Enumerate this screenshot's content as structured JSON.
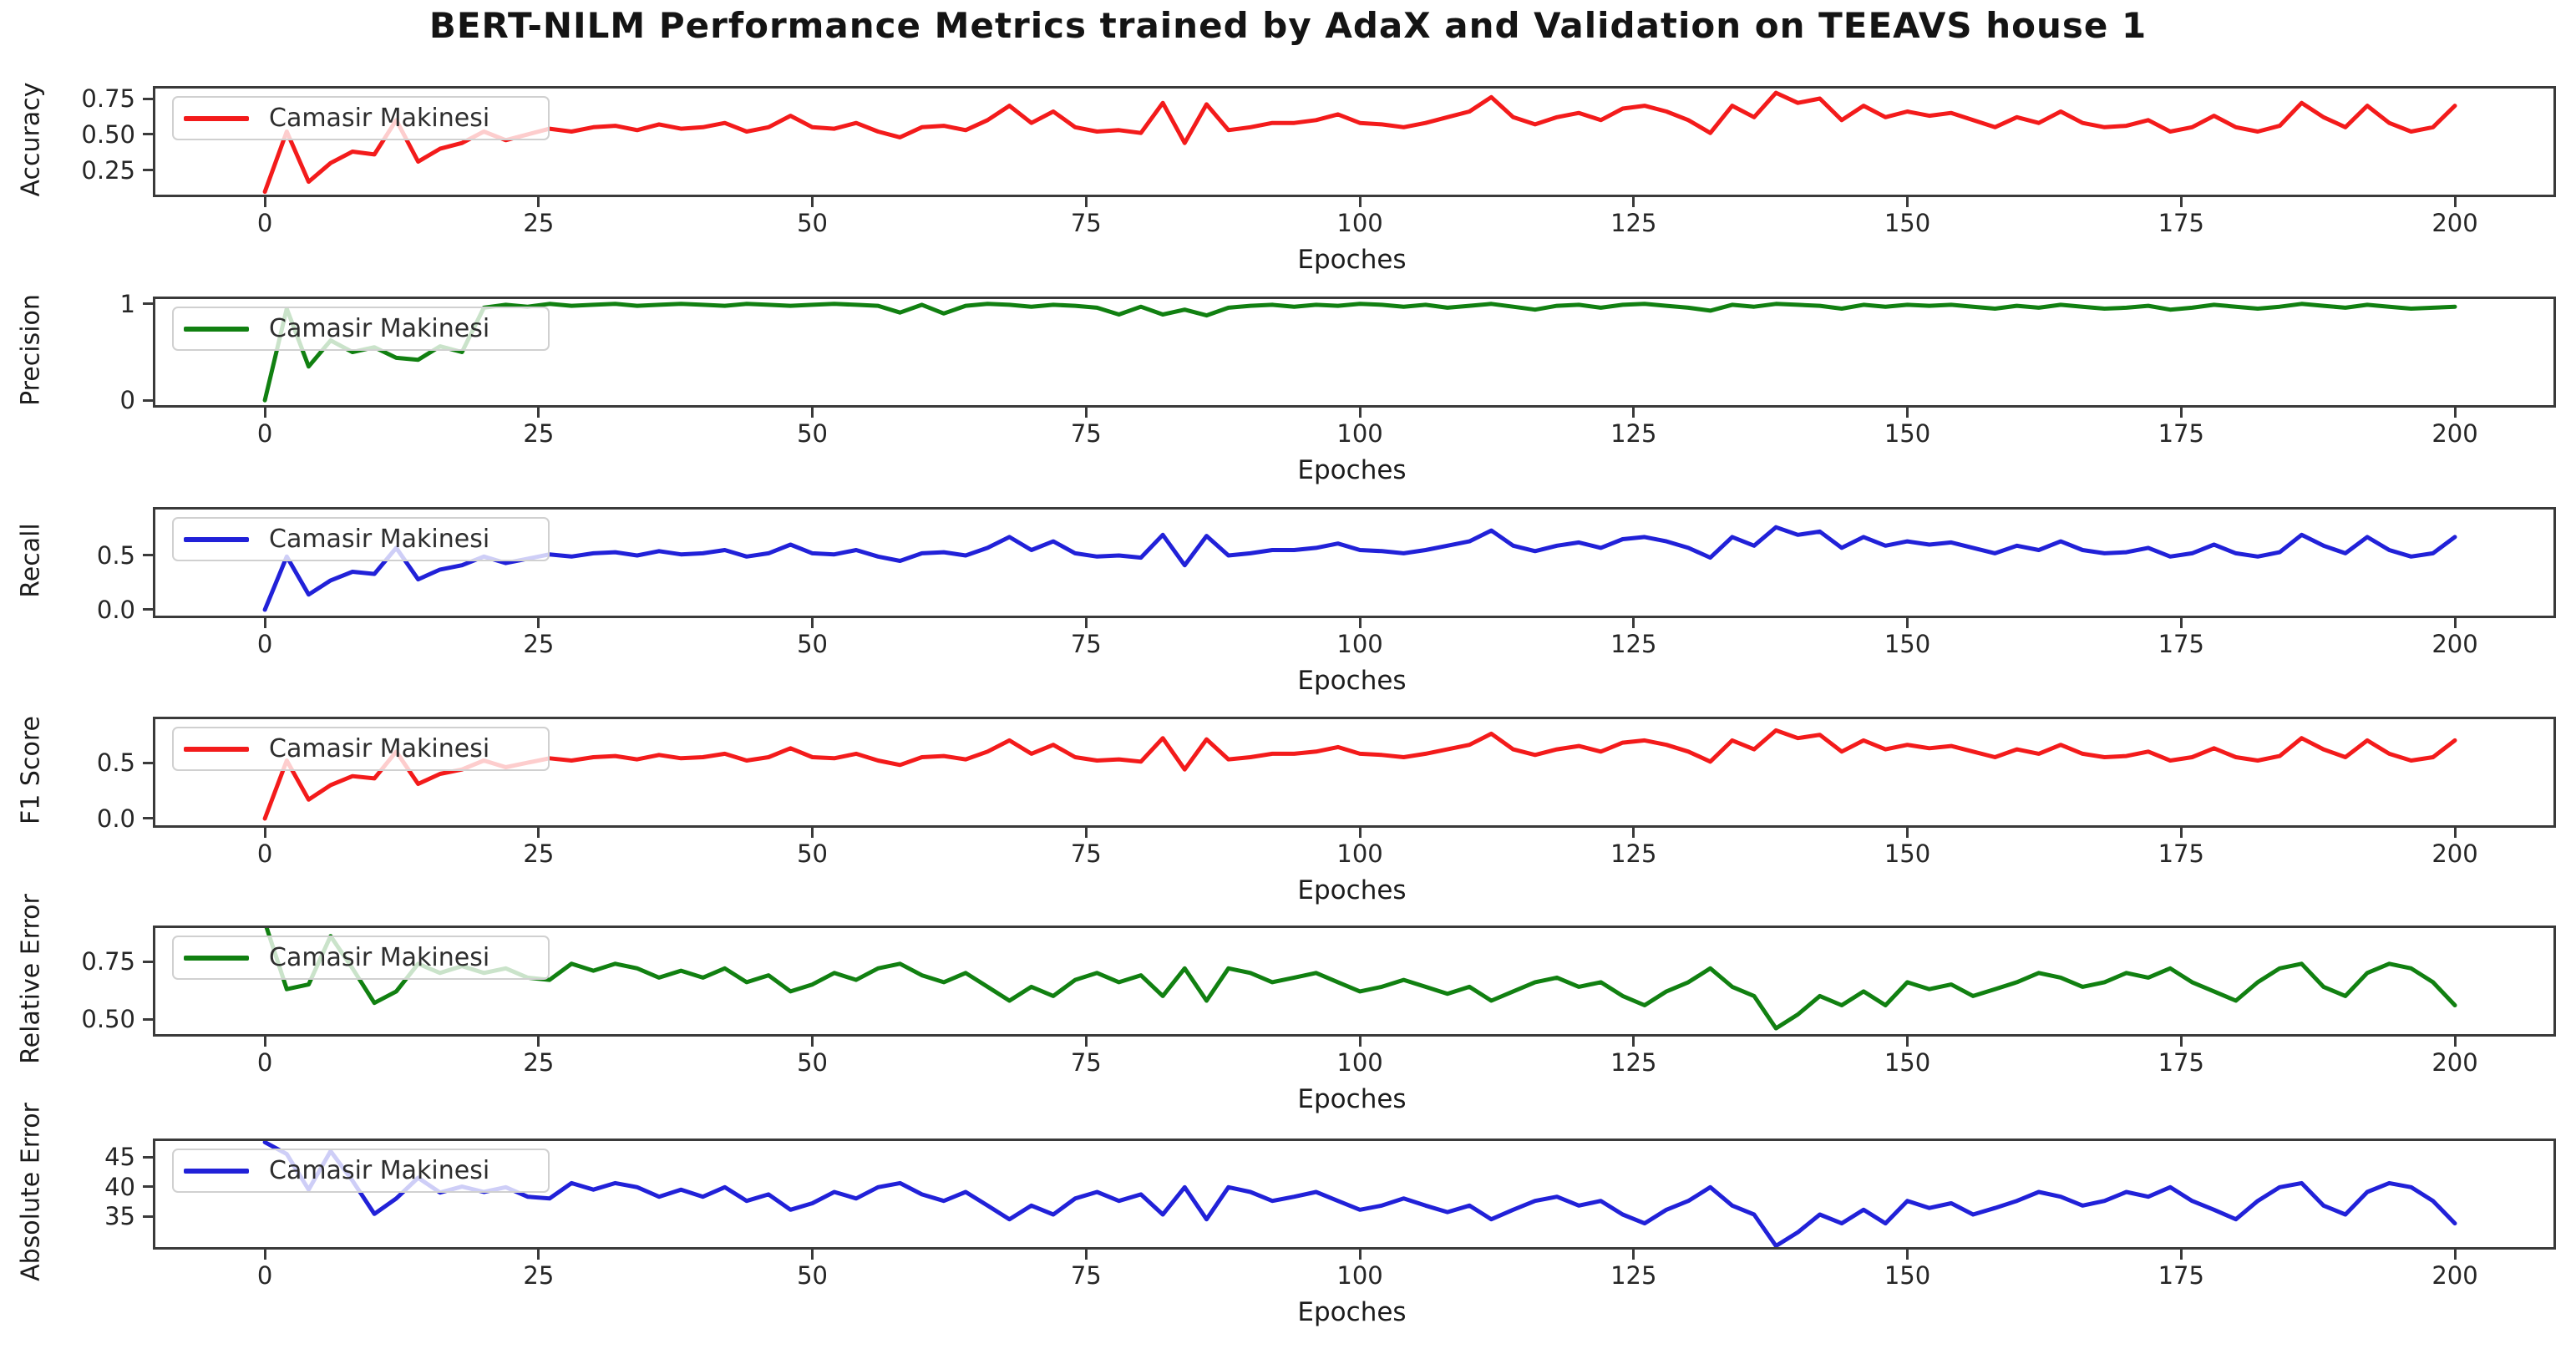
{
  "figure": {
    "title": "BERT-NILM Performance Metrics trained by AdaX and Validation on TEEAVS house 1"
  },
  "chart_data": {
    "type": "line",
    "title": "BERT-NILM Performance Metrics trained by AdaX and Validation on TEEAVS house 1",
    "xlabel": "Epoches",
    "grid": false,
    "legend_position": "upper left",
    "xlim": [
      -10,
      209
    ],
    "xticks": [
      0,
      25,
      50,
      75,
      100,
      125,
      150,
      175,
      200
    ],
    "xtick_labels": [
      "0",
      "25",
      "50",
      "75",
      "100",
      "125",
      "150",
      "175",
      "200"
    ],
    "x": [
      0,
      2,
      4,
      6,
      8,
      10,
      12,
      14,
      16,
      18,
      20,
      22,
      24,
      26,
      28,
      30,
      32,
      34,
      36,
      38,
      40,
      42,
      44,
      46,
      48,
      50,
      52,
      54,
      56,
      58,
      60,
      62,
      64,
      66,
      68,
      70,
      72,
      74,
      76,
      78,
      80,
      82,
      84,
      86,
      88,
      90,
      92,
      94,
      96,
      98,
      100,
      102,
      104,
      106,
      108,
      110,
      112,
      114,
      116,
      118,
      120,
      122,
      124,
      126,
      128,
      130,
      132,
      134,
      136,
      138,
      140,
      142,
      144,
      146,
      148,
      150,
      152,
      154,
      156,
      158,
      160,
      162,
      164,
      166,
      168,
      170,
      172,
      174,
      176,
      178,
      180,
      182,
      184,
      186,
      188,
      190,
      192,
      194,
      196,
      198,
      200
    ],
    "panels": [
      {
        "ylabel": "Accuracy",
        "legend": "Camasir Makinesi",
        "color": "#f31b1b",
        "ylim": [
          0.08,
          0.82
        ],
        "ytick_values": [
          0.25,
          0.5,
          0.75
        ],
        "ytick_labels": [
          "0.25",
          "0.50",
          "0.75"
        ],
        "values": [
          0.1,
          0.52,
          0.17,
          0.3,
          0.38,
          0.36,
          0.6,
          0.31,
          0.4,
          0.44,
          0.52,
          0.46,
          0.5,
          0.54,
          0.52,
          0.55,
          0.56,
          0.53,
          0.57,
          0.54,
          0.55,
          0.58,
          0.52,
          0.55,
          0.63,
          0.55,
          0.54,
          0.58,
          0.52,
          0.48,
          0.55,
          0.56,
          0.53,
          0.6,
          0.7,
          0.58,
          0.66,
          0.55,
          0.52,
          0.53,
          0.51,
          0.72,
          0.44,
          0.71,
          0.53,
          0.55,
          0.58,
          0.58,
          0.6,
          0.64,
          0.58,
          0.57,
          0.55,
          0.58,
          0.62,
          0.66,
          0.76,
          0.62,
          0.57,
          0.62,
          0.65,
          0.6,
          0.68,
          0.7,
          0.66,
          0.6,
          0.51,
          0.7,
          0.62,
          0.79,
          0.72,
          0.75,
          0.6,
          0.7,
          0.62,
          0.66,
          0.63,
          0.65,
          0.6,
          0.55,
          0.62,
          0.58,
          0.66,
          0.58,
          0.55,
          0.56,
          0.6,
          0.52,
          0.55,
          0.63,
          0.55,
          0.52,
          0.56,
          0.72,
          0.62,
          0.55,
          0.7,
          0.58,
          0.52,
          0.55,
          0.7
        ]
      },
      {
        "ylabel": "Precision",
        "legend": "Camasir Makinesi",
        "color": "#118011",
        "ylim": [
          -0.05,
          1.05
        ],
        "ytick_values": [
          0,
          1
        ],
        "ytick_labels": [
          "0",
          "1"
        ],
        "values": [
          0.0,
          0.95,
          0.35,
          0.62,
          0.5,
          0.55,
          0.44,
          0.42,
          0.56,
          0.5,
          0.96,
          0.99,
          0.97,
          1.0,
          0.98,
          0.99,
          1.0,
          0.98,
          0.99,
          1.0,
          0.99,
          0.98,
          1.0,
          0.99,
          0.98,
          0.99,
          1.0,
          0.99,
          0.98,
          0.91,
          0.99,
          0.9,
          0.98,
          1.0,
          0.99,
          0.97,
          0.99,
          0.98,
          0.96,
          0.89,
          0.97,
          0.89,
          0.94,
          0.88,
          0.96,
          0.98,
          0.99,
          0.97,
          0.99,
          0.98,
          1.0,
          0.99,
          0.97,
          0.99,
          0.96,
          0.98,
          1.0,
          0.97,
          0.94,
          0.98,
          0.99,
          0.96,
          0.99,
          1.0,
          0.98,
          0.96,
          0.93,
          0.99,
          0.97,
          1.0,
          0.99,
          0.98,
          0.95,
          0.99,
          0.97,
          0.99,
          0.98,
          0.99,
          0.97,
          0.95,
          0.98,
          0.96,
          0.99,
          0.97,
          0.95,
          0.96,
          0.98,
          0.94,
          0.96,
          0.99,
          0.97,
          0.95,
          0.97,
          1.0,
          0.98,
          0.96,
          0.99,
          0.97,
          0.95,
          0.96,
          0.97
        ]
      },
      {
        "ylabel": "Recall",
        "legend": "Camasir Makinesi",
        "color": "#2121d8",
        "ylim": [
          -0.054,
          0.923
        ],
        "ytick_values": [
          0.0,
          0.5
        ],
        "ytick_labels": [
          "0.0",
          "0.5"
        ],
        "values": [
          0.0,
          0.49,
          0.14,
          0.27,
          0.35,
          0.33,
          0.57,
          0.28,
          0.37,
          0.41,
          0.49,
          0.43,
          0.47,
          0.51,
          0.49,
          0.52,
          0.53,
          0.5,
          0.54,
          0.51,
          0.52,
          0.55,
          0.49,
          0.52,
          0.6,
          0.52,
          0.51,
          0.55,
          0.49,
          0.45,
          0.52,
          0.53,
          0.5,
          0.57,
          0.67,
          0.55,
          0.63,
          0.52,
          0.49,
          0.5,
          0.48,
          0.69,
          0.41,
          0.68,
          0.5,
          0.52,
          0.55,
          0.55,
          0.57,
          0.61,
          0.55,
          0.54,
          0.52,
          0.55,
          0.59,
          0.63,
          0.73,
          0.59,
          0.54,
          0.59,
          0.62,
          0.57,
          0.65,
          0.67,
          0.63,
          0.57,
          0.48,
          0.67,
          0.59,
          0.76,
          0.69,
          0.72,
          0.57,
          0.67,
          0.59,
          0.63,
          0.6,
          0.62,
          0.57,
          0.52,
          0.59,
          0.55,
          0.63,
          0.55,
          0.52,
          0.53,
          0.57,
          0.49,
          0.52,
          0.6,
          0.52,
          0.49,
          0.53,
          0.69,
          0.59,
          0.52,
          0.67,
          0.55,
          0.49,
          0.52,
          0.67
        ]
      },
      {
        "ylabel": "F1 Score",
        "legend": "Camasir Makinesi",
        "color": "#f31b1b",
        "ylim": [
          -0.06,
          0.89
        ],
        "ytick_values": [
          0.0,
          0.5
        ],
        "ytick_labels": [
          "0.0",
          "0.5"
        ],
        "values": [
          0.0,
          0.52,
          0.17,
          0.3,
          0.38,
          0.36,
          0.6,
          0.31,
          0.4,
          0.44,
          0.52,
          0.46,
          0.5,
          0.54,
          0.52,
          0.55,
          0.56,
          0.53,
          0.57,
          0.54,
          0.55,
          0.58,
          0.52,
          0.55,
          0.63,
          0.55,
          0.54,
          0.58,
          0.52,
          0.48,
          0.55,
          0.56,
          0.53,
          0.6,
          0.7,
          0.58,
          0.66,
          0.55,
          0.52,
          0.53,
          0.51,
          0.72,
          0.44,
          0.71,
          0.53,
          0.55,
          0.58,
          0.58,
          0.6,
          0.64,
          0.58,
          0.57,
          0.55,
          0.58,
          0.62,
          0.66,
          0.76,
          0.62,
          0.57,
          0.62,
          0.65,
          0.6,
          0.68,
          0.7,
          0.66,
          0.6,
          0.51,
          0.7,
          0.62,
          0.79,
          0.72,
          0.75,
          0.6,
          0.7,
          0.62,
          0.66,
          0.63,
          0.65,
          0.6,
          0.55,
          0.62,
          0.58,
          0.66,
          0.58,
          0.55,
          0.56,
          0.6,
          0.52,
          0.55,
          0.63,
          0.55,
          0.52,
          0.56,
          0.72,
          0.62,
          0.55,
          0.7,
          0.58,
          0.52,
          0.55,
          0.7
        ]
      },
      {
        "ylabel": "Relative Error",
        "legend": "Camasir Makinesi",
        "color": "#118011",
        "ylim": [
          0.435,
          0.895
        ],
        "ytick_values": [
          0.5,
          0.75
        ],
        "ytick_labels": [
          "0.50",
          "0.75"
        ],
        "values": [
          0.92,
          0.63,
          0.65,
          0.86,
          0.72,
          0.57,
          0.62,
          0.74,
          0.7,
          0.73,
          0.7,
          0.72,
          0.68,
          0.67,
          0.74,
          0.71,
          0.74,
          0.72,
          0.68,
          0.71,
          0.68,
          0.72,
          0.66,
          0.69,
          0.62,
          0.65,
          0.7,
          0.67,
          0.72,
          0.74,
          0.69,
          0.66,
          0.7,
          0.64,
          0.58,
          0.64,
          0.6,
          0.67,
          0.7,
          0.66,
          0.69,
          0.6,
          0.72,
          0.58,
          0.72,
          0.7,
          0.66,
          0.68,
          0.7,
          0.66,
          0.62,
          0.64,
          0.67,
          0.64,
          0.61,
          0.64,
          0.58,
          0.62,
          0.66,
          0.68,
          0.64,
          0.66,
          0.6,
          0.56,
          0.62,
          0.66,
          0.72,
          0.64,
          0.6,
          0.46,
          0.52,
          0.6,
          0.56,
          0.62,
          0.56,
          0.66,
          0.63,
          0.65,
          0.6,
          0.63,
          0.66,
          0.7,
          0.68,
          0.64,
          0.66,
          0.7,
          0.68,
          0.72,
          0.66,
          0.62,
          0.58,
          0.66,
          0.72,
          0.74,
          0.64,
          0.6,
          0.7,
          0.74,
          0.72,
          0.66,
          0.56
        ]
      },
      {
        "ylabel": "Absolute Error",
        "legend": "Camasir Makinesi",
        "color": "#2121d8",
        "ylim": [
          29.8,
          47.7
        ],
        "ytick_values": [
          35,
          40,
          45
        ],
        "ytick_labels": [
          "35",
          "40",
          "45"
        ],
        "values": [
          47.5,
          45.5,
          39.5,
          46.0,
          41.0,
          35.4,
          38.0,
          41.5,
          39.0,
          40.0,
          39.1,
          39.9,
          38.3,
          38.0,
          40.6,
          39.5,
          40.6,
          39.9,
          38.3,
          39.5,
          38.3,
          39.9,
          37.6,
          38.7,
          36.1,
          37.2,
          39.1,
          38.0,
          39.9,
          40.6,
          38.7,
          37.6,
          39.1,
          36.8,
          34.5,
          36.8,
          35.3,
          38.0,
          39.1,
          37.6,
          38.7,
          35.3,
          39.9,
          34.5,
          39.9,
          39.1,
          37.6,
          38.3,
          39.1,
          37.6,
          36.1,
          36.8,
          38.0,
          36.8,
          35.7,
          36.8,
          34.5,
          36.1,
          37.6,
          38.3,
          36.8,
          37.6,
          35.3,
          33.8,
          36.1,
          37.6,
          39.9,
          36.8,
          35.3,
          30.0,
          32.3,
          35.3,
          33.8,
          36.1,
          33.8,
          37.6,
          36.4,
          37.2,
          35.3,
          36.4,
          37.6,
          39.1,
          38.3,
          36.8,
          37.6,
          39.1,
          38.3,
          39.9,
          37.6,
          36.1,
          34.5,
          37.6,
          39.9,
          40.6,
          36.8,
          35.3,
          39.1,
          40.6,
          39.9,
          37.6,
          33.8
        ]
      }
    ]
  }
}
